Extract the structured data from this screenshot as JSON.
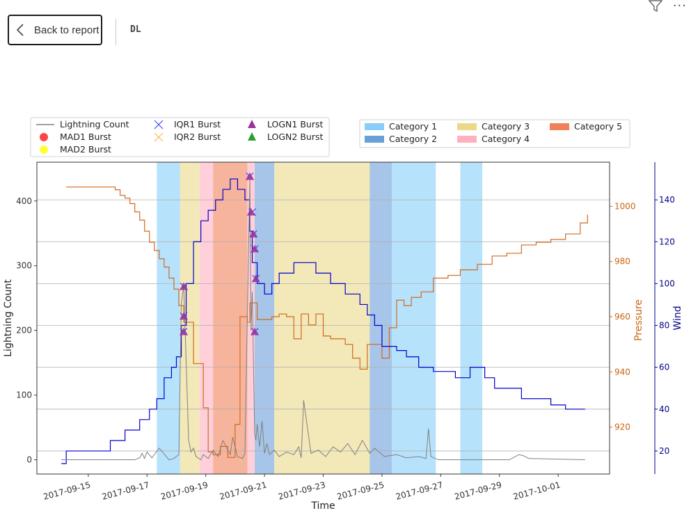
{
  "header": {
    "back_label": "Back to report",
    "page_name": "DL",
    "filter_icon": "filter-icon",
    "more_icon": "more-options-icon"
  },
  "chart_data": {
    "type": "line",
    "title": "",
    "xlabel": "Time",
    "ylabel_left": "Lightning Count",
    "ylabel_right1": "Pressure",
    "ylabel_right2": "Wind",
    "colors": {
      "lightning": "#808080",
      "pressure": "#d2691e",
      "wind": "#0000cd",
      "pressure_axis": "#c86410",
      "wind_axis": "#00008b",
      "grid": "#b0b0b0"
    },
    "x_ticks": [
      "2017-09-15",
      "2017-09-17",
      "2017-09-19",
      "2017-09-21",
      "2017-09-23",
      "2017-09-25",
      "2017-09-27",
      "2017-09-29",
      "2017-10-01"
    ],
    "xlim": [
      "2017-09-13T06:00",
      "2017-10-02T18:00"
    ],
    "left_axis": {
      "ticks": [
        0,
        100,
        200,
        300,
        400
      ],
      "ylim": [
        -22,
        460
      ]
    },
    "pressure_axis": {
      "ticks": [
        920,
        940,
        960,
        980,
        1000
      ],
      "ylim": [
        903,
        1016
      ]
    },
    "wind_axis": {
      "ticks": [
        20,
        40,
        60,
        80,
        100,
        120,
        140
      ],
      "ylim": [
        9,
        158
      ]
    },
    "legend_series": [
      {
        "label": "Lightning Count",
        "marker": "line",
        "color": "#808080"
      },
      {
        "label": "MAD1 Burst",
        "marker": "circle",
        "color": "#ff4444"
      },
      {
        "label": "MAD2 Burst",
        "marker": "circle",
        "color": "#ffff33"
      },
      {
        "label": "IQR1 Burst",
        "marker": "x",
        "color": "#4444ff"
      },
      {
        "label": "IQR2 Burst",
        "marker": "x",
        "color": "#ffb84d"
      },
      {
        "label": "LOGN1 Burst",
        "marker": "triangle",
        "color": "#993399"
      },
      {
        "label": "LOGN2 Burst",
        "marker": "triangle",
        "color": "#2ca02c"
      }
    ],
    "legend_categories": [
      {
        "label": "Category 1",
        "color": "#87cefa"
      },
      {
        "label": "Category 2",
        "color": "#6a9fd8"
      },
      {
        "label": "Category 3",
        "color": "#ebd889"
      },
      {
        "label": "Category 4",
        "color": "#ffb0c0"
      },
      {
        "label": "Category 5",
        "color": "#f0825a"
      }
    ],
    "category_bands": [
      {
        "start": "2017-09-17T08:00",
        "end": "2017-09-18T03:00",
        "category": 1
      },
      {
        "start": "2017-09-18T03:00",
        "end": "2017-09-18T19:00",
        "category": 3
      },
      {
        "start": "2017-09-18T19:00",
        "end": "2017-09-19T06:00",
        "category": 4
      },
      {
        "start": "2017-09-19T06:00",
        "end": "2017-09-20T10:00",
        "category": 5
      },
      {
        "start": "2017-09-20T10:00",
        "end": "2017-09-20T16:00",
        "category": 4
      },
      {
        "start": "2017-09-20T16:00",
        "end": "2017-09-21T08:00",
        "category": 2
      },
      {
        "start": "2017-09-21T08:00",
        "end": "2017-09-24T14:00",
        "category": 3
      },
      {
        "start": "2017-09-24T14:00",
        "end": "2017-09-25T08:00",
        "category": 2
      },
      {
        "start": "2017-09-25T08:00",
        "end": "2017-09-26T20:00",
        "category": 1
      },
      {
        "start": "2017-09-27T16:00",
        "end": "2017-09-28T10:00",
        "category": 1
      }
    ],
    "series": [
      {
        "name": "Lightning Count",
        "x": [
          "2017-09-14T02:00",
          "2017-09-16T14:00",
          "2017-09-16T18:00",
          "2017-09-16T20:00",
          "2017-09-16T22:00",
          "2017-09-17T00:00",
          "2017-09-17T04:00",
          "2017-09-17T06:00",
          "2017-09-17T10:00",
          "2017-09-17T18:00",
          "2017-09-17T22:00",
          "2017-09-18T02:00",
          "2017-09-18T04:00",
          "2017-09-18T06:00",
          "2017-09-18T08:00",
          "2017-09-18T10:00",
          "2017-09-18T12:00",
          "2017-09-18T14:00",
          "2017-09-18T16:00",
          "2017-09-18T20:00",
          "2017-09-18T22:00",
          "2017-09-19T02:00",
          "2017-09-19T06:00",
          "2017-09-19T10:00",
          "2017-09-19T14:00",
          "2017-09-19T20:00",
          "2017-09-19T22:00",
          "2017-09-20T02:00",
          "2017-09-20T06:00",
          "2017-09-20T08:00",
          "2017-09-20T12:00",
          "2017-09-20T13:00",
          "2017-09-20T14:00",
          "2017-09-20T15:00",
          "2017-09-20T16:00",
          "2017-09-20T17:00",
          "2017-09-20T18:00",
          "2017-09-20T20:00",
          "2017-09-20T22:00",
          "2017-09-21T00:00",
          "2017-09-21T02:00",
          "2017-09-21T04:00",
          "2017-09-21T08:00",
          "2017-09-21T12:00",
          "2017-09-21T18:00",
          "2017-09-22T00:00",
          "2017-09-22T04:00",
          "2017-09-22T06:00",
          "2017-09-22T08:00",
          "2017-09-22T14:00",
          "2017-09-22T20:00",
          "2017-09-23T02:00",
          "2017-09-23T08:00",
          "2017-09-23T14:00",
          "2017-09-23T20:00",
          "2017-09-24T02:00",
          "2017-09-24T08:00",
          "2017-09-24T14:00",
          "2017-09-24T18:00",
          "2017-09-25T02:00",
          "2017-09-25T12:00",
          "2017-09-25T20:00",
          "2017-09-26T06:00",
          "2017-09-26T12:00",
          "2017-09-26T14:00",
          "2017-09-26T16:00",
          "2017-09-26T22:00",
          "2017-09-29T08:00",
          "2017-09-29T12:00",
          "2017-09-29T16:00",
          "2017-09-29T20:00",
          "2017-09-30T00:00",
          "2017-10-01T22:00"
        ],
        "values": [
          0,
          0,
          3,
          10,
          2,
          12,
          3,
          8,
          18,
          0,
          2,
          8,
          240,
          270,
          150,
          30,
          12,
          18,
          5,
          0,
          8,
          2,
          15,
          5,
          30,
          8,
          35,
          5,
          2,
          10,
          435,
          200,
          260,
          150,
          40,
          30,
          55,
          20,
          60,
          10,
          25,
          8,
          15,
          5,
          12,
          8,
          20,
          3,
          92,
          10,
          15,
          5,
          20,
          12,
          25,
          8,
          30,
          10,
          18,
          5,
          8,
          3,
          5,
          2,
          48,
          5,
          0,
          0,
          4,
          8,
          6,
          2,
          0
        ]
      },
      {
        "name": "Pressure",
        "x": [
          "2017-09-14T06:00",
          "2017-09-15T18:00",
          "2017-09-15T22:00",
          "2017-09-16T02:00",
          "2017-09-16T06:00",
          "2017-09-16T10:00",
          "2017-09-16T14:00",
          "2017-09-16T18:00",
          "2017-09-16T22:00",
          "2017-09-17T02:00",
          "2017-09-17T06:00",
          "2017-09-17T10:00",
          "2017-09-17T14:00",
          "2017-09-17T18:00",
          "2017-09-17T22:00",
          "2017-09-18T02:00",
          "2017-09-18T06:00",
          "2017-09-18T14:00",
          "2017-09-18T22:00",
          "2017-09-19T02:00",
          "2017-09-19T06:00",
          "2017-09-19T12:00",
          "2017-09-19T18:00",
          "2017-09-20T00:00",
          "2017-09-20T04:00",
          "2017-09-20T10:00",
          "2017-09-20T12:00",
          "2017-09-20T18:00",
          "2017-09-21T00:00",
          "2017-09-21T06:00",
          "2017-09-21T12:00",
          "2017-09-21T18:00",
          "2017-09-22T00:00",
          "2017-09-22T06:00",
          "2017-09-22T12:00",
          "2017-09-22T18:00",
          "2017-09-23T00:00",
          "2017-09-23T06:00",
          "2017-09-23T12:00",
          "2017-09-23T18:00",
          "2017-09-24T00:00",
          "2017-09-24T06:00",
          "2017-09-24T12:00",
          "2017-09-25T00:00",
          "2017-09-25T06:00",
          "2017-09-25T12:00",
          "2017-09-25T18:00",
          "2017-09-26T00:00",
          "2017-09-26T08:00",
          "2017-09-26T18:00",
          "2017-09-27T06:00",
          "2017-09-27T16:00",
          "2017-09-28T06:00",
          "2017-09-28T18:00",
          "2017-09-29T06:00",
          "2017-09-29T18:00",
          "2017-09-30T06:00",
          "2017-09-30T18:00",
          "2017-10-01T06:00",
          "2017-10-01T18:00",
          "2017-10-02T00:00"
        ],
        "values": [
          1007,
          1007,
          1006,
          1004,
          1003,
          1001,
          998,
          995,
          991,
          987,
          984,
          981,
          978,
          974,
          970,
          964,
          958,
          943,
          927,
          911,
          910,
          913,
          909,
          921,
          960,
          958,
          965,
          959,
          959,
          960,
          961,
          960,
          952,
          961,
          957,
          961,
          953,
          952,
          952,
          950,
          945,
          941,
          950,
          945,
          956,
          966,
          964,
          967,
          969,
          974,
          975,
          977,
          979,
          982,
          983,
          986,
          987,
          988,
          990,
          994,
          997
        ]
      },
      {
        "name": "Wind",
        "x": [
          "2017-09-14T02:00",
          "2017-09-14T06:00",
          "2017-09-15T06:00",
          "2017-09-15T18:00",
          "2017-09-16T06:00",
          "2017-09-16T18:00",
          "2017-09-17T02:00",
          "2017-09-17T08:00",
          "2017-09-17T14:00",
          "2017-09-17T20:00",
          "2017-09-18T00:00",
          "2017-09-18T04:00",
          "2017-09-18T08:00",
          "2017-09-18T14:00",
          "2017-09-18T20:00",
          "2017-09-19T02:00",
          "2017-09-19T08:00",
          "2017-09-19T14:00",
          "2017-09-19T20:00",
          "2017-09-20T02:00",
          "2017-09-20T08:00",
          "2017-09-20T12:00",
          "2017-09-20T14:00",
          "2017-09-20T18:00",
          "2017-09-21T00:00",
          "2017-09-21T06:00",
          "2017-09-21T12:00",
          "2017-09-22T00:00",
          "2017-09-22T06:00",
          "2017-09-22T18:00",
          "2017-09-23T06:00",
          "2017-09-23T18:00",
          "2017-09-24T06:00",
          "2017-09-24T12:00",
          "2017-09-24T18:00",
          "2017-09-25T00:00",
          "2017-09-25T12:00",
          "2017-09-25T20:00",
          "2017-09-26T06:00",
          "2017-09-26T18:00",
          "2017-09-27T12:00",
          "2017-09-28T00:00",
          "2017-09-28T12:00",
          "2017-09-28T20:00",
          "2017-09-29T06:00",
          "2017-09-29T18:00",
          "2017-09-30T06:00",
          "2017-09-30T18:00",
          "2017-10-01T06:00",
          "2017-10-01T22:00"
        ],
        "values": [
          14,
          20,
          20,
          25,
          30,
          35,
          40,
          45,
          55,
          60,
          65,
          80,
          100,
          120,
          130,
          135,
          140,
          145,
          150,
          145,
          140,
          125,
          110,
          100,
          95,
          100,
          105,
          110,
          110,
          105,
          100,
          95,
          90,
          85,
          80,
          70,
          68,
          65,
          60,
          58,
          55,
          60,
          55,
          50,
          50,
          45,
          45,
          42,
          40,
          40
        ]
      }
    ],
    "markers": [
      {
        "type": "iqr1",
        "x": "2017-09-18T06:00",
        "y": 268
      },
      {
        "type": "iqr1",
        "x": "2017-09-18T06:00",
        "y": 222
      },
      {
        "type": "iqr1",
        "x": "2017-09-18T06:00",
        "y": 198
      },
      {
        "type": "iqr1",
        "x": "2017-09-20T12:00",
        "y": 438
      },
      {
        "type": "iqr1",
        "x": "2017-09-20T14:00",
        "y": 383
      },
      {
        "type": "iqr1",
        "x": "2017-09-20T15:00",
        "y": 349
      },
      {
        "type": "iqr1",
        "x": "2017-09-20T16:00",
        "y": 326
      },
      {
        "type": "iqr1",
        "x": "2017-09-20T17:00",
        "y": 280
      },
      {
        "type": "iqr1",
        "x": "2017-09-20T16:00",
        "y": 198
      },
      {
        "type": "logn1",
        "x": "2017-09-18T06:00",
        "y": 268
      },
      {
        "type": "logn1",
        "x": "2017-09-18T06:00",
        "y": 222
      },
      {
        "type": "logn1",
        "x": "2017-09-18T06:00",
        "y": 198
      },
      {
        "type": "logn1",
        "x": "2017-09-20T12:00",
        "y": 438
      },
      {
        "type": "logn1",
        "x": "2017-09-20T13:00",
        "y": 383
      },
      {
        "type": "logn1",
        "x": "2017-09-20T15:00",
        "y": 349
      },
      {
        "type": "logn1",
        "x": "2017-09-20T16:00",
        "y": 326
      },
      {
        "type": "logn1",
        "x": "2017-09-20T17:00",
        "y": 280
      },
      {
        "type": "logn1",
        "x": "2017-09-20T16:00",
        "y": 198
      }
    ]
  }
}
